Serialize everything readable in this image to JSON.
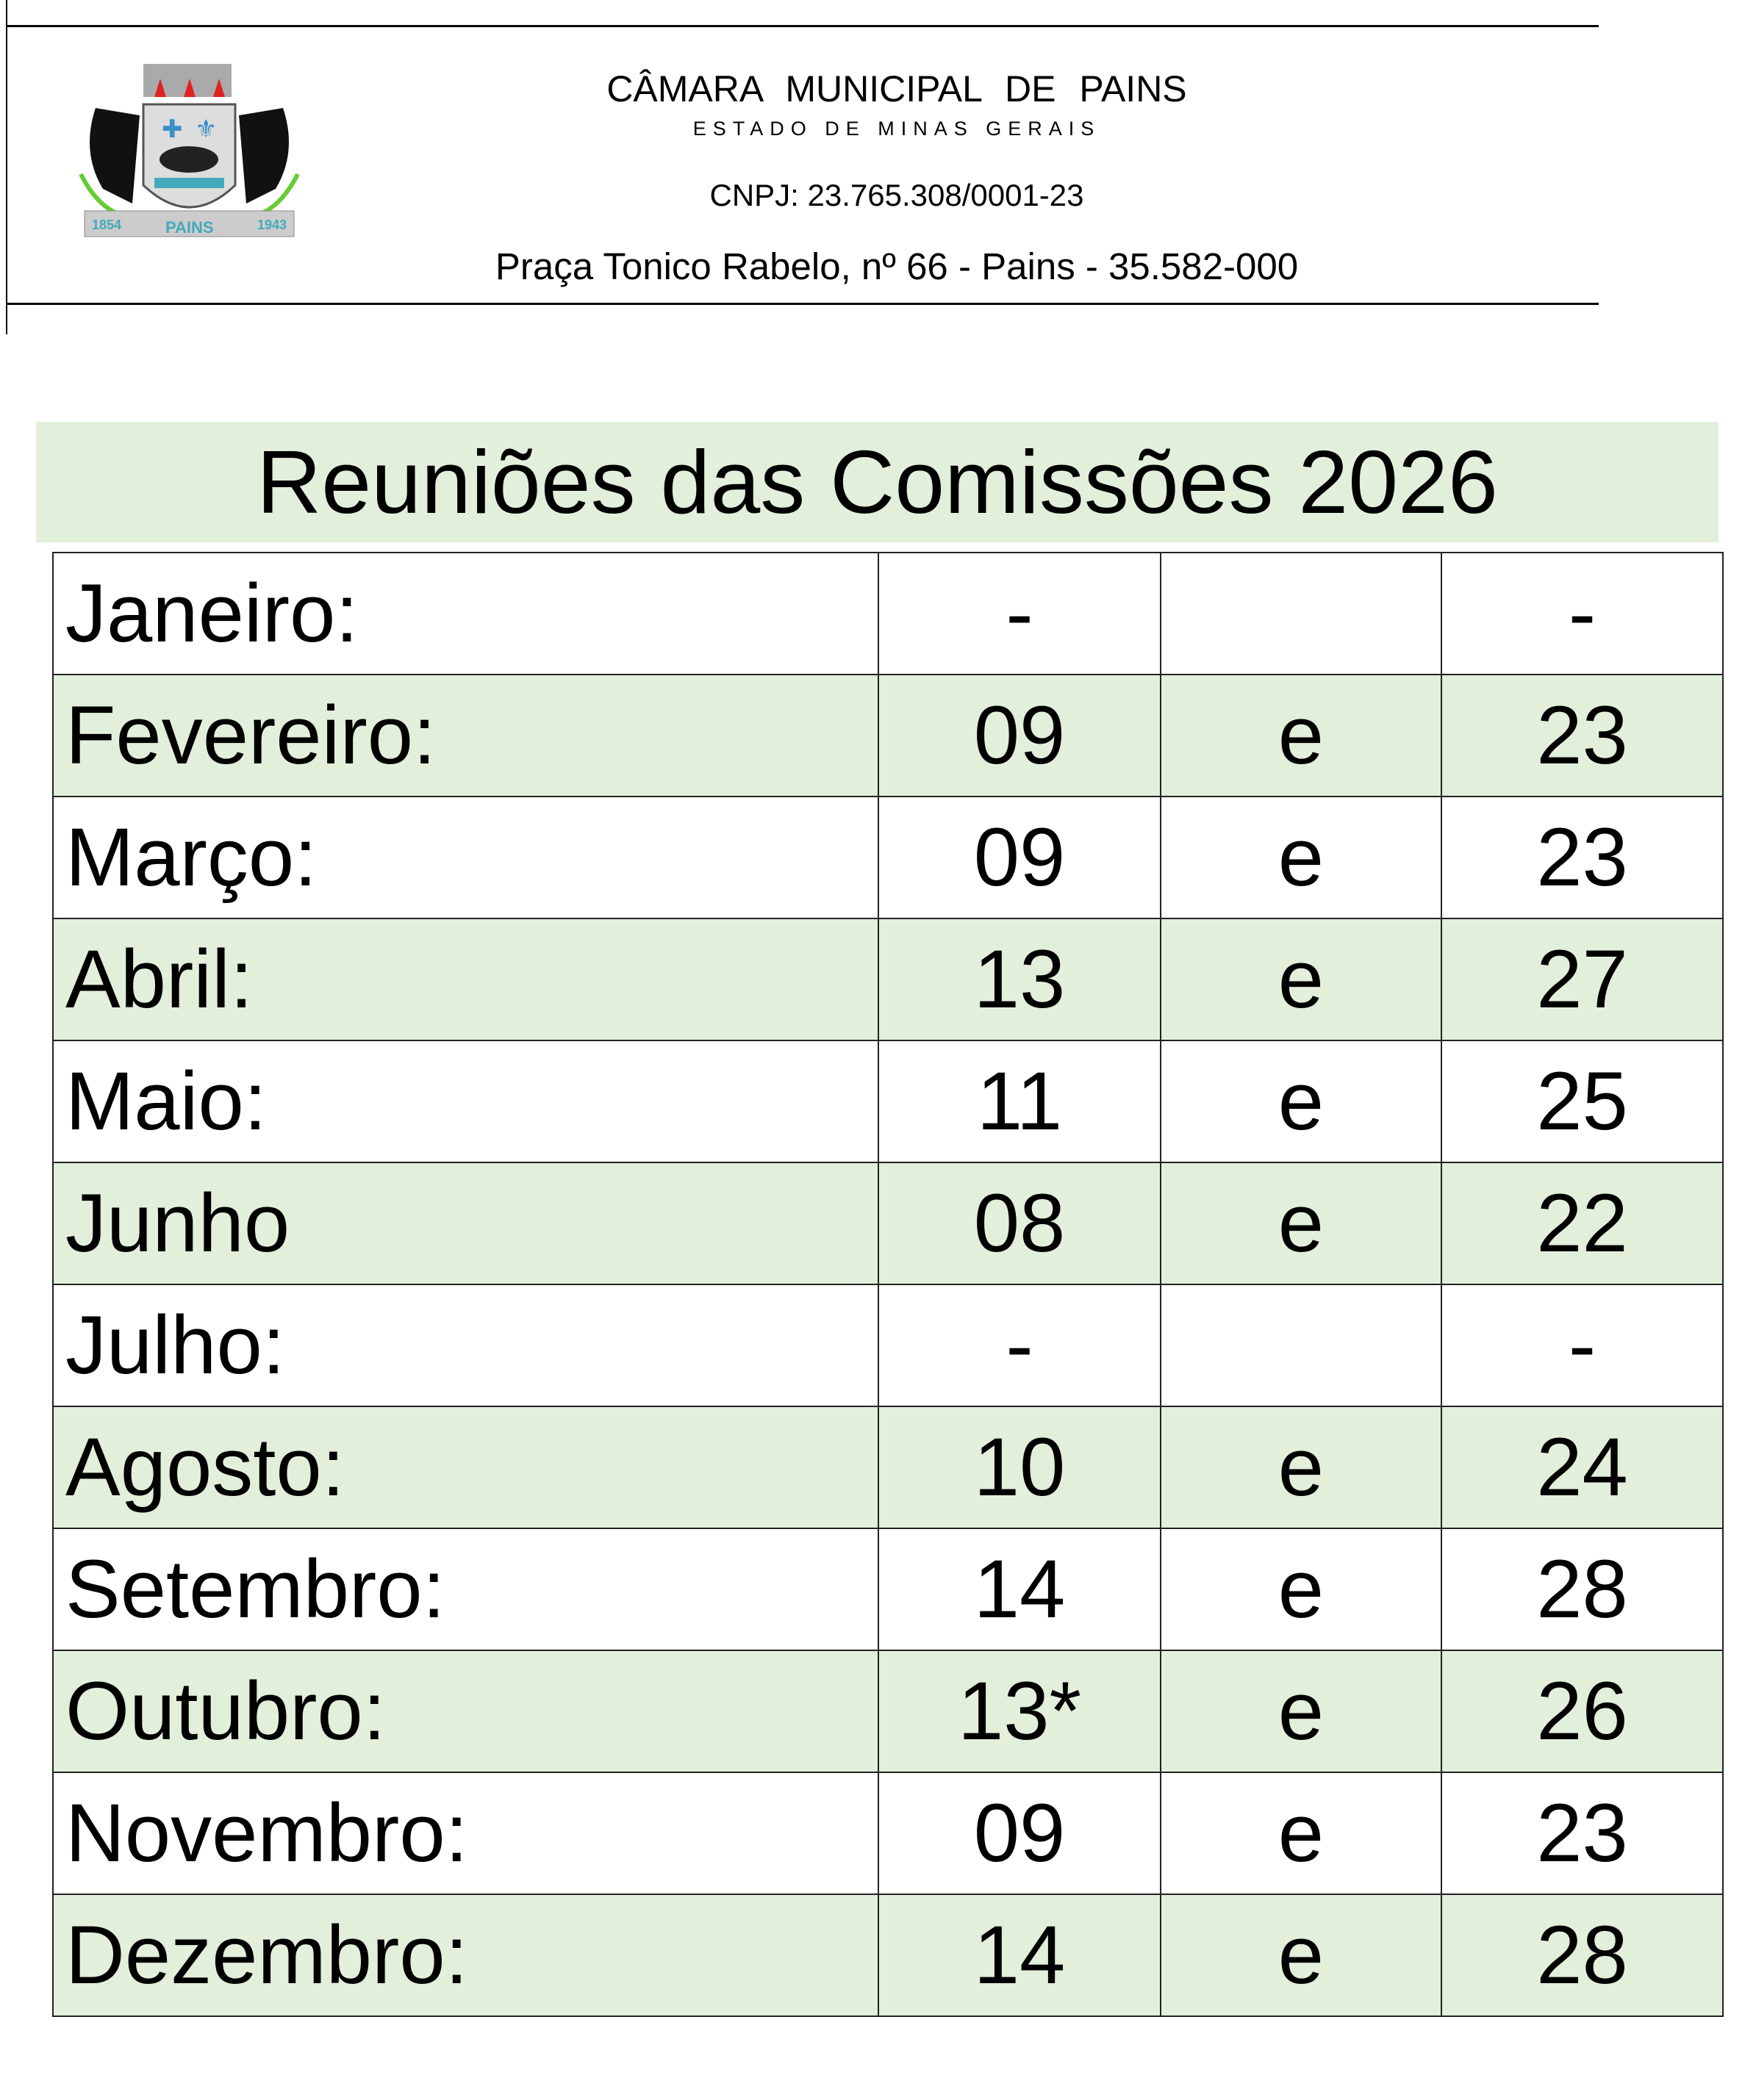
{
  "header": {
    "institution": "CÂMARA  MUNICIPAL  DE   PAINS",
    "state": "ESTADO DE MINAS GERAIS",
    "cnpj": "CNPJ: 23.765.308/0001-23",
    "address": "Praça Tonico Rabelo, nº 66 -  Pains -  35.582-000",
    "logo_text": [
      "1854",
      "PAINS",
      "1943"
    ]
  },
  "title": "Reuniões das Comissões 2026",
  "colors": {
    "row_highlight": "#e2efda"
  },
  "schedule": [
    {
      "month": "Janeiro:",
      "first": "-",
      "sep": "",
      "second": "-"
    },
    {
      "month": "Fevereiro:",
      "first": "09",
      "sep": "e",
      "second": "23"
    },
    {
      "month": "Março:",
      "first": "09",
      "sep": "e",
      "second": "23"
    },
    {
      "month": "Abril:",
      "first": "13",
      "sep": "e",
      "second": "27"
    },
    {
      "month": "Maio:",
      "first": "11",
      "sep": "e",
      "second": "25"
    },
    {
      "month": "Junho",
      "first": "08",
      "sep": "e",
      "second": "22"
    },
    {
      "month": "Julho:",
      "first": "-",
      "sep": "",
      "second": "-"
    },
    {
      "month": "Agosto:",
      "first": "10",
      "sep": "e",
      "second": "24"
    },
    {
      "month": "Setembro:",
      "first": "14",
      "sep": "e",
      "second": "28"
    },
    {
      "month": "Outubro:",
      "first": "13*",
      "sep": "e",
      "second": "26"
    },
    {
      "month": "Novembro:",
      "first": "09",
      "sep": "e",
      "second": "23"
    },
    {
      "month": "Dezembro:",
      "first": "14",
      "sep": "e",
      "second": "28"
    }
  ]
}
